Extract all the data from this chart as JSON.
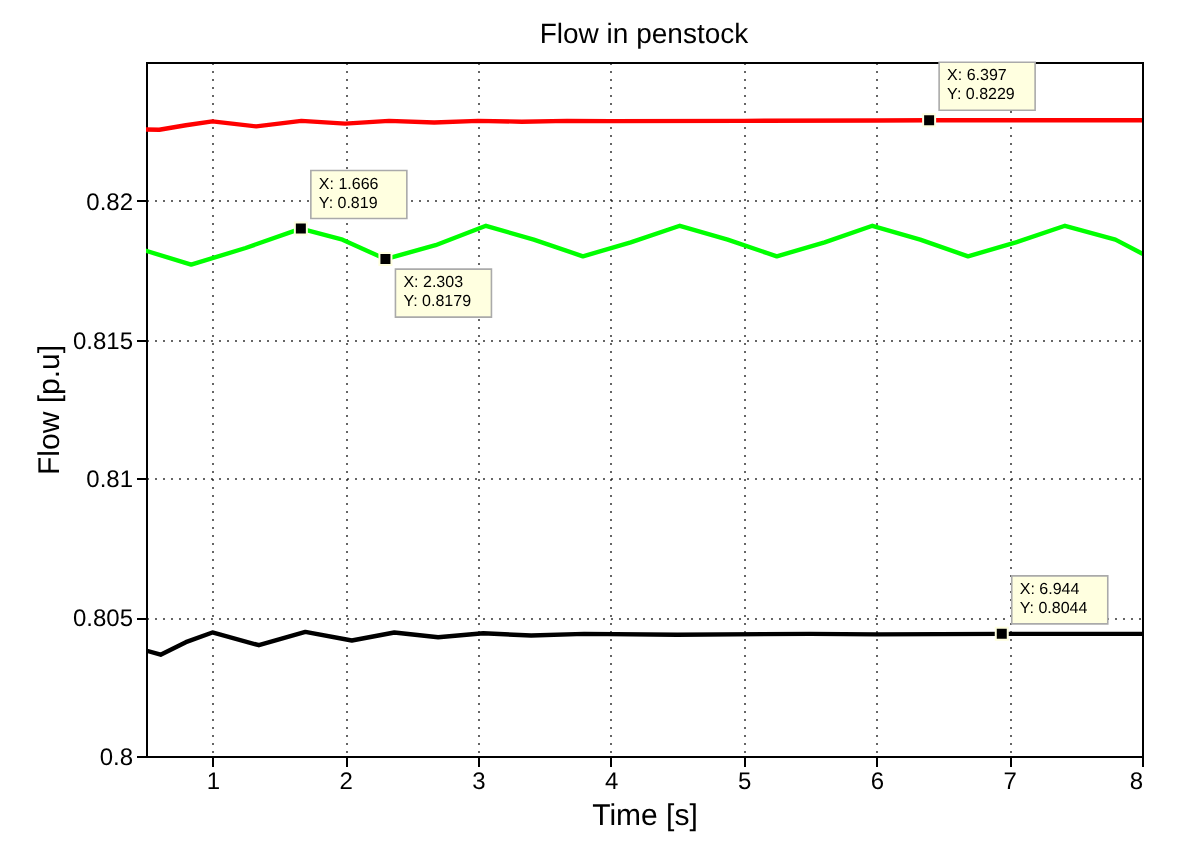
{
  "chart_data": {
    "type": "line",
    "title": "Flow in penstock",
    "xlabel": "Time [s]",
    "ylabel": "Flow [p.u]",
    "xlim": [
      0.5,
      8
    ],
    "xticks": [
      1,
      2,
      3,
      4,
      5,
      6,
      7,
      8
    ],
    "ylim": [
      0.8,
      0.825
    ],
    "yticks": [
      0.8,
      0.805,
      0.81,
      0.815,
      0.82
    ],
    "grid": true,
    "line_style": "solid",
    "series": [
      {
        "color": "#ff0000",
        "x": [
          0.5,
          0.6,
          0.8,
          1.0,
          1.33,
          1.67,
          2.0,
          2.33,
          2.67,
          3.0,
          3.33,
          3.67,
          4.0,
          5.0,
          6.0,
          6.397,
          7.0,
          8.0
        ],
        "values": [
          0.82257,
          0.82256,
          0.82272,
          0.82286,
          0.82268,
          0.82288,
          0.82278,
          0.82288,
          0.82282,
          0.82288,
          0.82285,
          0.82288,
          0.82287,
          0.82288,
          0.82289,
          0.8229,
          0.8229,
          0.8229
        ]
      },
      {
        "color": "#00ff00",
        "x": [
          0.5,
          0.84,
          1.25,
          1.666,
          1.98,
          2.303,
          2.68,
          3.06,
          3.42,
          3.79,
          4.15,
          4.52,
          4.88,
          5.25,
          5.61,
          5.97,
          6.33,
          6.69,
          7.05,
          7.42,
          7.8,
          8.0
        ],
        "values": [
          0.8182,
          0.8177,
          0.8183,
          0.819,
          0.8186,
          0.8179,
          0.8184,
          0.8191,
          0.8186,
          0.818,
          0.8185,
          0.8191,
          0.8186,
          0.818,
          0.8185,
          0.8191,
          0.8186,
          0.818,
          0.8185,
          0.8191,
          0.8186,
          0.8181
        ]
      },
      {
        "color": "#000000",
        "x": [
          0.5,
          0.61,
          0.8,
          1.0,
          1.35,
          1.7,
          2.05,
          2.37,
          2.7,
          3.04,
          3.4,
          3.8,
          4.5,
          5.5,
          6.0,
          6.944,
          8.0
        ],
        "values": [
          0.8038,
          0.80365,
          0.8041,
          0.80445,
          0.80399,
          0.80447,
          0.80416,
          0.80445,
          0.80428,
          0.80442,
          0.80434,
          0.8044,
          0.80437,
          0.8044,
          0.80438,
          0.8044,
          0.8044
        ]
      }
    ],
    "annotations": [
      {
        "text": "X: 1.666\nY: 0.819",
        "x": 1.666,
        "y": 0.819
      },
      {
        "text": "X: 2.303\nY: 0.8179",
        "x": 2.303,
        "y": 0.8179
      },
      {
        "text": "X: 6.397\nY: 0.8229",
        "x": 6.397,
        "y": 0.8229
      },
      {
        "text": "X: 6.944\nY: 0.8044",
        "x": 6.944,
        "y": 0.8044
      }
    ]
  }
}
